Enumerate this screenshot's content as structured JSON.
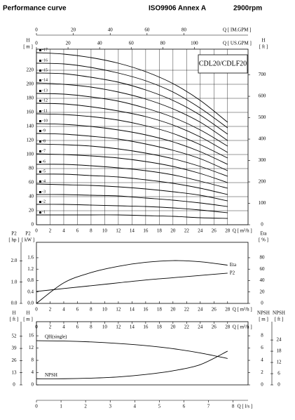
{
  "header": {
    "title": "Performance curve",
    "standard": "ISO9906 Annex A",
    "speed": "2900rpm"
  },
  "chart_data": [
    {
      "type": "line",
      "title": "CDL20/CDLF20",
      "grid": true,
      "series_label_position": "start",
      "xaxis_side": "bottom",
      "x": [
        0,
        4,
        8,
        12,
        16,
        20,
        24,
        28
      ],
      "xlim": [
        0,
        31
      ],
      "xticks": [
        0,
        2,
        4,
        6,
        8,
        10,
        12,
        14,
        16,
        18,
        20,
        22,
        24,
        26,
        28
      ],
      "xlabel": "Q [ m³/h ]",
      "ylabel": "H",
      "yunit": "[ m ]",
      "ylim": [
        0,
        250
      ],
      "yticks": [
        0,
        20,
        40,
        60,
        80,
        100,
        120,
        140,
        160,
        180,
        200,
        220
      ],
      "y2label": "H",
      "y2unit": "[ ft ]",
      "y2lim": [
        0,
        820
      ],
      "y2ticks": [
        0,
        100,
        200,
        300,
        400,
        500,
        600,
        700
      ],
      "extra_axes": [
        {
          "position": "top-outer",
          "label": "Q [ IM.GPM ]",
          "lim": [
            0,
            114.8
          ],
          "ticks": [
            0,
            20,
            40,
            60,
            80
          ]
        },
        {
          "position": "top",
          "label": "Q [ US.GPM ]",
          "lim": [
            0,
            134
          ],
          "ticks": [
            0,
            20,
            40,
            60,
            80,
            100
          ]
        }
      ],
      "series": [
        {
          "name": "-1",
          "color": "#000000",
          "values": [
            14,
            14,
            14,
            14,
            13,
            12,
            10,
            9
          ]
        },
        {
          "name": "-2",
          "color": "#000000",
          "values": [
            29,
            29,
            28,
            27,
            26,
            24,
            21,
            17
          ]
        },
        {
          "name": "-3",
          "color": "#000000",
          "values": [
            43,
            43,
            42,
            41,
            38,
            35,
            31,
            26
          ]
        },
        {
          "name": "-4",
          "color": "#000000",
          "values": [
            58,
            57,
            56,
            54,
            51,
            47,
            42,
            34
          ]
        },
        {
          "name": "-5",
          "color": "#000000",
          "values": [
            72,
            72,
            70,
            68,
            64,
            59,
            52,
            43
          ]
        },
        {
          "name": "-6",
          "color": "#000000",
          "values": [
            86,
            86,
            84,
            81,
            77,
            71,
            62,
            52
          ]
        },
        {
          "name": "-7",
          "color": "#000000",
          "values": [
            101,
            100,
            98,
            95,
            90,
            83,
            73,
            60
          ]
        },
        {
          "name": "-8",
          "color": "#000000",
          "values": [
            115,
            114,
            112,
            108,
            102,
            94,
            83,
            69
          ]
        },
        {
          "name": "-9",
          "color": "#000000",
          "values": [
            130,
            129,
            126,
            122,
            115,
            106,
            94,
            77
          ]
        },
        {
          "name": "-10",
          "color": "#000000",
          "values": [
            144,
            143,
            140,
            135,
            128,
            118,
            104,
            86
          ]
        },
        {
          "name": "-11",
          "color": "#000000",
          "values": [
            158,
            157,
            154,
            149,
            141,
            130,
            114,
            95
          ]
        },
        {
          "name": "-12",
          "color": "#000000",
          "values": [
            173,
            172,
            168,
            162,
            154,
            142,
            125,
            103
          ]
        },
        {
          "name": "-13",
          "color": "#000000",
          "values": [
            187,
            186,
            182,
            176,
            166,
            153,
            135,
            112
          ]
        },
        {
          "name": "-14",
          "color": "#000000",
          "values": [
            202,
            200,
            196,
            189,
            179,
            165,
            146,
            120
          ]
        },
        {
          "name": "-15",
          "color": "#000000",
          "values": [
            216,
            215,
            210,
            203,
            192,
            177,
            156,
            129
          ]
        },
        {
          "name": "-16",
          "color": "#000000",
          "values": [
            230,
            229,
            224,
            216,
            205,
            189,
            166,
            138
          ]
        },
        {
          "name": "-17",
          "color": "#000000",
          "values": [
            245,
            243,
            238,
            230,
            218,
            201,
            177,
            146
          ]
        }
      ]
    },
    {
      "type": "line",
      "grid": false,
      "series_label_position": "end",
      "xaxis_side": "bottom",
      "x": [
        0,
        4,
        8,
        12,
        16,
        20,
        24,
        28
      ],
      "xlim": [
        0,
        31
      ],
      "xticks": [
        0,
        2,
        4,
        6,
        8,
        10,
        12,
        14,
        16,
        18,
        20,
        22,
        24,
        26,
        28
      ],
      "xlabel": "Q [ m³/h ]",
      "ylabel": "P2",
      "yunit": "[ kW ]",
      "ylim": [
        0,
        2.14
      ],
      "yticks": [
        {
          "value": 0,
          "label": "0.0"
        },
        0.4,
        0.8,
        1.2,
        1.6
      ],
      "y2label": "Eta",
      "y2unit": "[ % ]",
      "y2lim": [
        0,
        107
      ],
      "y2ticks": [
        0,
        20,
        40,
        60,
        80
      ],
      "extra_axes": [
        {
          "position": "left-outer",
          "label": "P2",
          "unit": "[ hp ]",
          "lim": [
            0,
            2.87
          ],
          "ticks": [
            {
              "value": 0,
              "label": "0.0"
            },
            {
              "value": 1,
              "label": "1.0"
            },
            {
              "value": 2,
              "label": "2.0"
            }
          ]
        }
      ],
      "series": [
        {
          "name": "P2",
          "color": "#000000",
          "values": [
            0.42,
            0.52,
            0.62,
            0.72,
            0.82,
            0.9,
            0.98,
            1.06
          ]
        },
        {
          "name": "Eta",
          "color": "#000000",
          "axis": "y2",
          "values": [
            0,
            36,
            54,
            65,
            72,
            75,
            73,
            67
          ]
        }
      ]
    },
    {
      "type": "line",
      "grid": false,
      "series_label_position": "start",
      "xaxis_side": "top",
      "x": [
        0,
        4,
        8,
        12,
        16,
        20,
        24,
        28
      ],
      "xlim": [
        0,
        31
      ],
      "xticks": [
        0,
        2,
        4,
        6,
        8,
        10,
        12,
        14,
        16,
        18,
        20,
        22,
        24,
        26,
        28
      ],
      "xlabel": "Q [ m³/h ]",
      "ylabel": "H",
      "yunit": "[ m ]",
      "ylim": [
        0,
        20.6
      ],
      "yticks": [
        0,
        4,
        8,
        12,
        16
      ],
      "y2label": "NPSH",
      "y2unit": "[ m ]",
      "y2lim": [
        0,
        10.3
      ],
      "y2ticks": [
        0,
        2,
        4,
        6,
        8
      ],
      "extra_axes": [
        {
          "position": "left-outer",
          "label": "H",
          "unit": "[ ft ]",
          "lim": [
            0,
            67.6
          ],
          "ticks": [
            0,
            13,
            26,
            39,
            52
          ]
        },
        {
          "position": "right-outer",
          "label": "NPSH",
          "unit": "[ ft ]",
          "lim": [
            0,
            33.8
          ],
          "ticks": [
            0,
            6,
            12,
            18,
            24
          ]
        },
        {
          "position": "bottom",
          "label": "Q [ l/s ]",
          "lim": [
            0,
            8.61
          ],
          "ticks": [
            0,
            1,
            2,
            3,
            4,
            5,
            6,
            7,
            8
          ]
        }
      ],
      "series": [
        {
          "name": "QH(single)",
          "color": "#000000",
          "values": [
            14.4,
            14.3,
            14.0,
            13.5,
            12.8,
            11.8,
            10.4,
            8.6
          ]
        },
        {
          "name": "NPSH",
          "color": "#000000",
          "axis": "y2",
          "values": [
            1.0,
            1.0,
            1.1,
            1.3,
            1.7,
            2.3,
            3.3,
            5.5
          ]
        }
      ]
    }
  ]
}
